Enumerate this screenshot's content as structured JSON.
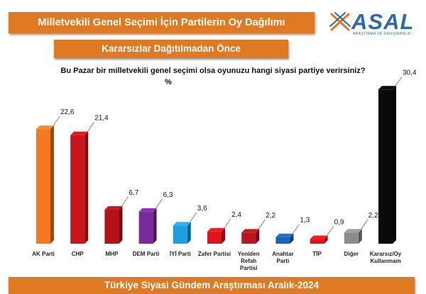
{
  "title": "Milletvekili Genel Seçimi İçin Partilerin Oy Dağılımı",
  "subtitle": "Kararsızlar Dağıtılmadan Önce",
  "question": "Bu Pazar bir milletvekili genel seçimi olsa oyunuzu hangi siyasi partiye verirsiniz?",
  "unit": "%",
  "footer": "Türkiye Siyasi Gündem Araştırması Aralık-2024",
  "logo": {
    "word": "ASAL",
    "tagline": "ARAŞTIRMA VE DANIŞMANLIK"
  },
  "chart_data": {
    "type": "bar",
    "categories": [
      "AK Parti",
      "CHP",
      "MHP",
      "DEM Parti",
      "İYİ Parti",
      "Zafer Partisi",
      "Yeniden Refah Partisi",
      "Anahtar Parti",
      "TİP",
      "Diğer",
      "Kararsız/Oy Kullanmam"
    ],
    "category_lines": [
      [
        "AK Parti"
      ],
      [
        "CHP"
      ],
      [
        "MHP"
      ],
      [
        "DEM Parti"
      ],
      [
        "İYİ Parti"
      ],
      [
        "Zafer Partisi"
      ],
      [
        "Yeniden",
        "Refah",
        "Partisi"
      ],
      [
        "Anahtar",
        "Parti"
      ],
      [
        "TİP"
      ],
      [
        "Diğer"
      ],
      [
        "Kararsız/Oy",
        "Kullanmam"
      ]
    ],
    "values": [
      22.6,
      21.4,
      6.7,
      6.3,
      3.6,
      2.4,
      2.2,
      1.3,
      0.9,
      2.2,
      30.4
    ],
    "value_labels": [
      "22,6",
      "21,4",
      "6,7",
      "6,3",
      "3,6",
      "2,4",
      "2,2",
      "1,3",
      "0,9",
      "2,2",
      "30,4"
    ],
    "colors": [
      "#f47a1f",
      "#c8151b",
      "#b51218",
      "#7a2b9a",
      "#1e9ee0",
      "#e0141b",
      "#b8171d",
      "#1c63b6",
      "#e0141b",
      "#8c8c8c",
      "#0a0a0a"
    ],
    "ylim": [
      0,
      31
    ],
    "grid": false,
    "legend": "none",
    "style": "3d-columns"
  }
}
